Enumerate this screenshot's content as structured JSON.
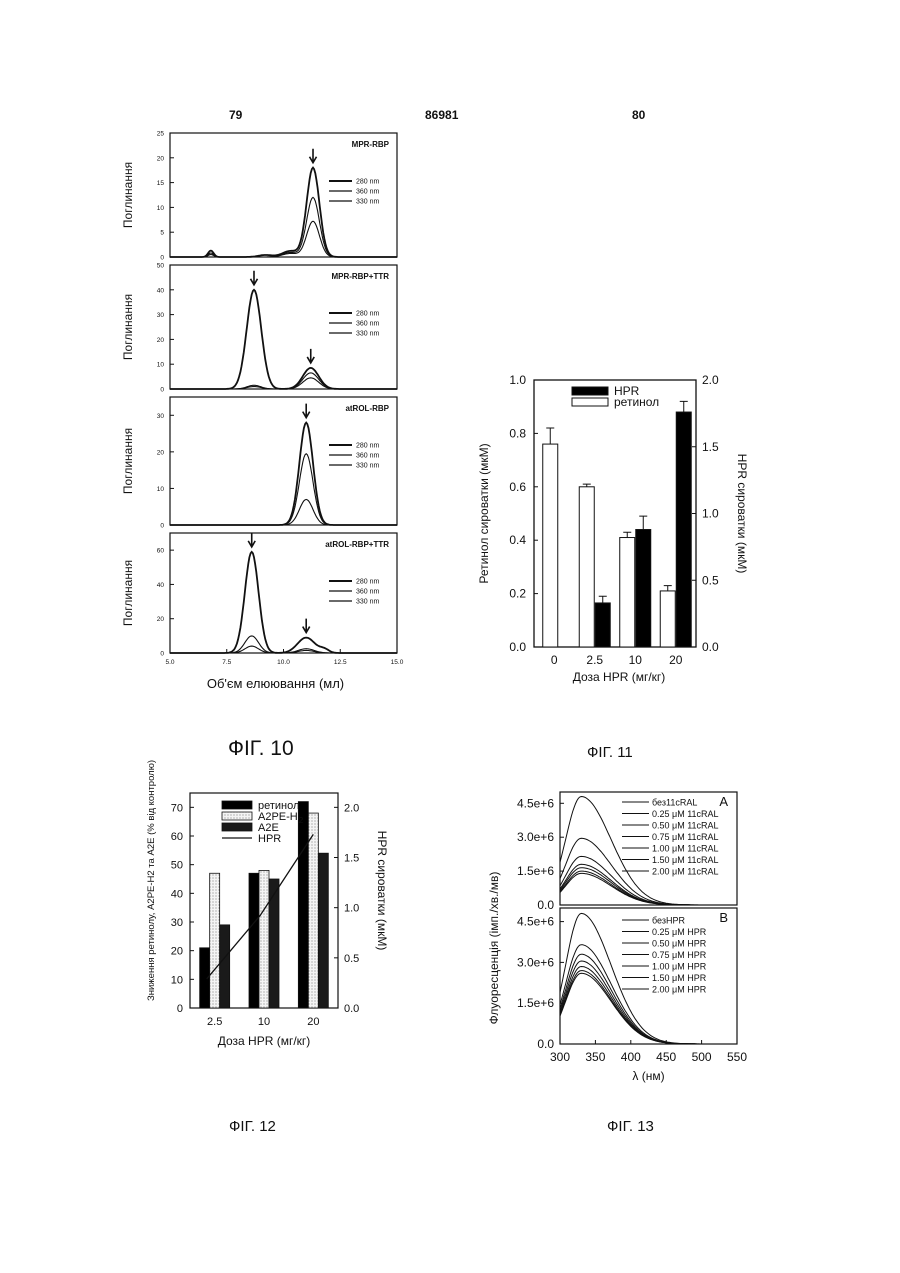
{
  "page": {
    "left_number": "79",
    "patent_number": "86981",
    "right_number": "80"
  },
  "captions": {
    "fig10": "ФІГ. 10",
    "fig11": "ФІГ. 11",
    "fig12": "ФІГ. 12",
    "fig13": "ФІГ. 13"
  },
  "chart_data": [
    {
      "id": "fig10",
      "type": "line",
      "xlabel": "Об'єм елюювання (мл)",
      "xlim": [
        5.0,
        15.0
      ],
      "xticks": [
        "5.0",
        "7.5",
        "10.0",
        "12.5",
        "15.0"
      ],
      "ylabel": "Поглинання",
      "panels": [
        {
          "title": "MPR-RBP",
          "ylim": [
            0,
            25
          ],
          "yticks": [
            "0",
            "5",
            "10",
            "15",
            "20",
            "25"
          ],
          "legend": [
            "280 nm",
            "360 nm",
            "330 nm"
          ],
          "arrows_x": [
            11.3
          ],
          "series": [
            {
              "name": "280 nm",
              "peaks": [
                [
                  6.8,
                  1.3,
                  0.12
                ],
                [
                  9.2,
                  0.4,
                  0.3
                ],
                [
                  10.3,
                  1.2,
                  0.35
                ],
                [
                  11.3,
                  18,
                  0.28
                ]
              ]
            },
            {
              "name": "360 nm",
              "peaks": [
                [
                  6.8,
                  0.8,
                  0.12
                ],
                [
                  10.3,
                  0.9,
                  0.35
                ],
                [
                  11.3,
                  12,
                  0.28
                ]
              ]
            },
            {
              "name": "330 nm",
              "peaks": [
                [
                  6.8,
                  0.5,
                  0.12
                ],
                [
                  10.3,
                  0.7,
                  0.35
                ],
                [
                  11.3,
                  7.2,
                  0.28
                ]
              ]
            }
          ]
        },
        {
          "title": "MPR-RBP+TTR",
          "ylim": [
            0,
            50
          ],
          "yticks": [
            "0",
            "10",
            "20",
            "30",
            "40",
            "50"
          ],
          "legend": [
            "280 nm",
            "360 nm",
            "330 nm"
          ],
          "arrows_x": [
            8.7,
            11.2
          ],
          "series": [
            {
              "name": "280 nm",
              "peaks": [
                [
                  8.7,
                  40,
                  0.32
                ],
                [
                  11.2,
                  8.5,
                  0.35
                ]
              ]
            },
            {
              "name": "360 nm",
              "peaks": [
                [
                  8.7,
                  1.5,
                  0.3
                ],
                [
                  11.2,
                  6.5,
                  0.35
                ]
              ]
            },
            {
              "name": "330 nm",
              "peaks": [
                [
                  8.7,
                  1.0,
                  0.3
                ],
                [
                  11.2,
                  4.5,
                  0.35
                ]
              ]
            }
          ]
        },
        {
          "title": "atROL-RBP",
          "ylim": [
            0,
            35
          ],
          "yticks": [
            "0",
            "10",
            "20",
            "30"
          ],
          "legend": [
            "280 nm",
            "360 nm",
            "330 nm"
          ],
          "arrows_x": [
            11.0
          ],
          "series": [
            {
              "name": "280 nm",
              "peaks": [
                [
                  11.0,
                  28,
                  0.3
                ]
              ]
            },
            {
              "name": "360 nm",
              "peaks": [
                [
                  11.0,
                  19.5,
                  0.3
                ]
              ]
            },
            {
              "name": "330 nm",
              "peaks": [
                [
                  11.0,
                  7,
                  0.3
                ]
              ]
            }
          ]
        },
        {
          "title": "atROL-RBP+TTR",
          "ylim": [
            0,
            70
          ],
          "yticks": [
            "0",
            "20",
            "40",
            "60"
          ],
          "legend": [
            "280 nm",
            "360 nm",
            "330 nm"
          ],
          "arrows_x": [
            8.6,
            11.0
          ],
          "series": [
            {
              "name": "280 nm",
              "peaks": [
                [
                  8.6,
                  59,
                  0.3
                ],
                [
                  11.0,
                  9,
                  0.38
                ],
                [
                  11.8,
                  2,
                  0.2
                ]
              ]
            },
            {
              "name": "360 nm",
              "peaks": [
                [
                  8.6,
                  10,
                  0.3
                ],
                [
                  11.0,
                  2.5,
                  0.35
                ]
              ]
            },
            {
              "name": "330 nm",
              "peaks": [
                [
                  8.6,
                  4,
                  0.3
                ],
                [
                  11.0,
                  1.5,
                  0.35
                ]
              ]
            }
          ]
        }
      ]
    },
    {
      "id": "fig11",
      "type": "bar",
      "xlabel": "Доза HPR (мг/кг)",
      "categories": [
        "0",
        "2.5",
        "10",
        "20"
      ],
      "ylabel_left": "Ретинол сироватки (мкМ)",
      "ylabel_right": "HPR сироватки (мкМ)",
      "ylim_left": [
        0.0,
        1.0
      ],
      "ylim_right": [
        0.0,
        2.0
      ],
      "yticks_left": [
        "0.0",
        "0.2",
        "0.4",
        "0.6",
        "0.8",
        "1.0"
      ],
      "yticks_right": [
        "0.0",
        "0.5",
        "1.0",
        "1.5",
        "2.0"
      ],
      "series": [
        {
          "name": "HPR",
          "axis": "right",
          "values": [
            null,
            0.33,
            0.88,
            1.76
          ],
          "errors": [
            null,
            0.05,
            0.1,
            0.08
          ],
          "color": "#000000"
        },
        {
          "name": "ретинол",
          "axis": "left",
          "values": [
            0.76,
            0.6,
            0.41,
            0.21
          ],
          "errors": [
            0.06,
            0.01,
            0.02,
            0.02
          ],
          "color": "#ffffff"
        }
      ]
    },
    {
      "id": "fig12",
      "type": "bar",
      "xlabel": "Доза HPR (мг/кг)",
      "categories": [
        "2.5",
        "10",
        "20"
      ],
      "ylabel_left": "Зниження ретинолу, A2PE-H2 та A2E (% від контролю)",
      "ylabel_right": "HPR сироватки (мкМ)",
      "ylim_left": [
        0,
        75
      ],
      "ylim_right": [
        0.0,
        2.143
      ],
      "yticks_left": [
        "0",
        "10",
        "20",
        "30",
        "40",
        "50",
        "60",
        "70"
      ],
      "yticks_right": [
        "0.0",
        "0.5",
        "1.0",
        "1.5",
        "2.0"
      ],
      "series": [
        {
          "name": "ретинол",
          "values": [
            21,
            47,
            72
          ],
          "color": "#000000"
        },
        {
          "name": "A2PE-H",
          "name_sub": "2",
          "values": [
            47,
            48,
            68
          ],
          "color": "#f4f4f4"
        },
        {
          "name": "A2E",
          "values": [
            29,
            45,
            54
          ],
          "color": "#1a1a1a"
        },
        {
          "name": "HPR",
          "type": "line",
          "axis": "right",
          "values": [
            0.29,
            0.92,
            1.73
          ]
        }
      ]
    },
    {
      "id": "fig13",
      "type": "line",
      "xlabel": "λ (нм)",
      "ylabel": "Флуоресценція (імп./хв./мв)",
      "xlim": [
        300,
        550
      ],
      "xticks": [
        "300",
        "350",
        "400",
        "450",
        "500",
        "550"
      ],
      "ylim": [
        0,
        5000000
      ],
      "yticks": [
        "0.0",
        "1.5e+6",
        "3.0e+6",
        "4.5e+6"
      ],
      "panels": [
        {
          "label": "A",
          "legend": [
            "без11cRAL",
            "0.25 μM 11cRAL",
            "0.50 μM 11cRAL",
            "0.75 μM 11cRAL",
            "1.00 μM 11cRAL",
            "1.50 μM 11cRAL",
            "2.00 μM 11cRAL"
          ],
          "peaks": [
            4800000,
            2950000,
            2150000,
            1800000,
            1650000,
            1500000,
            1400000
          ]
        },
        {
          "label": "B",
          "legend": [
            "безHPR",
            "0.25 μM HPR",
            "0.50 μM HPR",
            "0.75 μM HPR",
            "1.00 μM HPR",
            "1.50 μM HPR",
            "2.00 μM HPR"
          ],
          "peaks": [
            4800000,
            3650000,
            3300000,
            3050000,
            2850000,
            2700000,
            2600000
          ]
        }
      ]
    }
  ]
}
